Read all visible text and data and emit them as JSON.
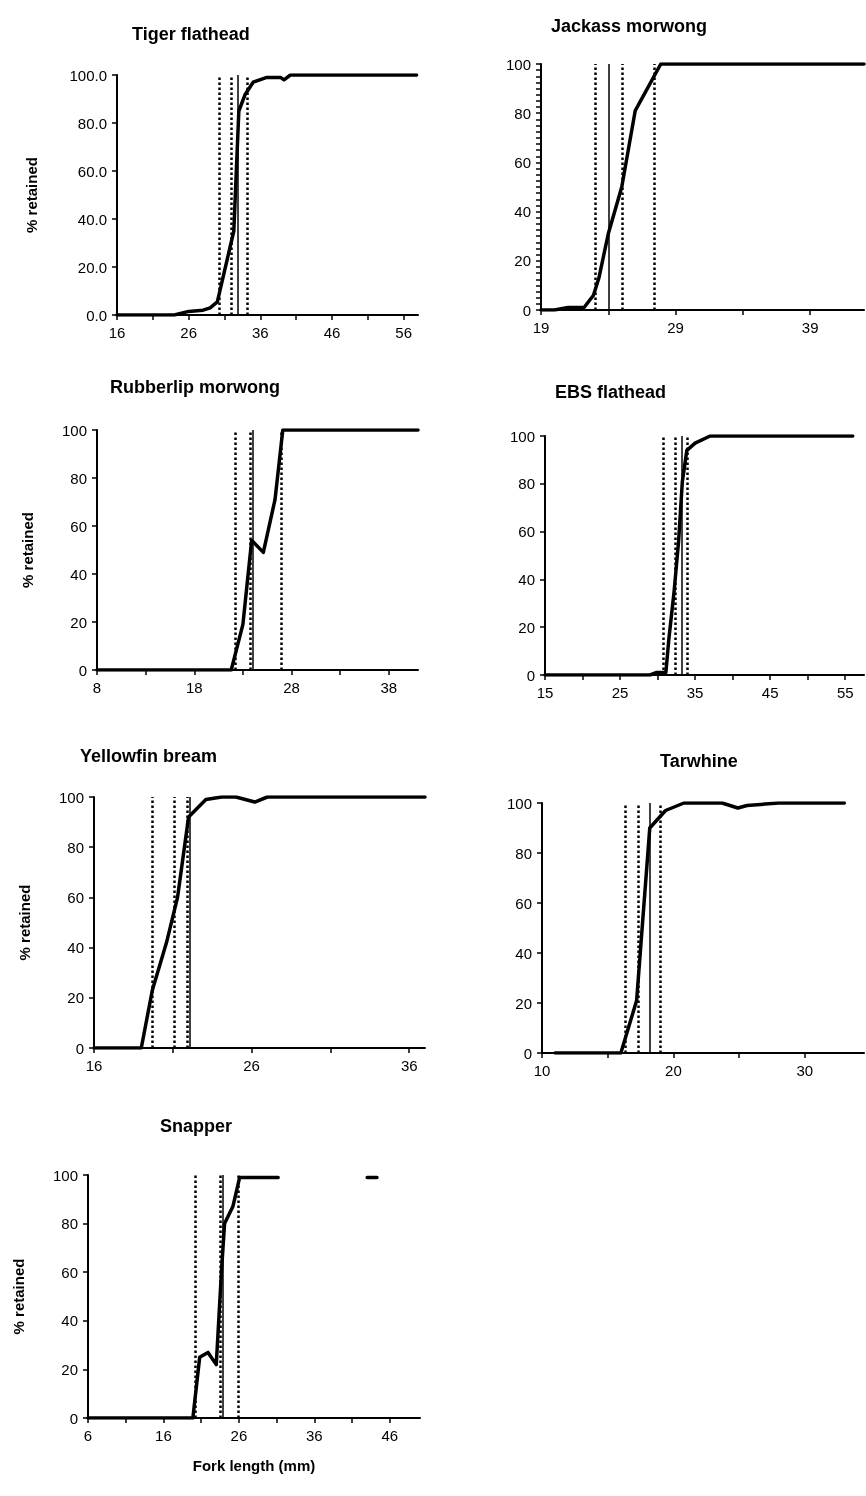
{
  "chart_data": [
    {
      "type": "line",
      "title": "Tiger flathead",
      "ylabel": "% retained",
      "marker": "none",
      "grid": false,
      "xlim": [
        16,
        58
      ],
      "xticks": [
        16,
        {
          "value": 21,
          "label": null
        },
        26,
        {
          "value": 31,
          "label": null
        },
        36,
        {
          "value": 41,
          "label": null
        },
        46,
        {
          "value": 51,
          "label": null
        },
        56
      ],
      "ylim": [
        0,
        100
      ],
      "yticks": [
        {
          "value": 0,
          "label": "0.0"
        },
        {
          "value": 20,
          "label": "20.0"
        },
        {
          "value": 40,
          "label": "40.0"
        },
        {
          "value": 60,
          "label": "60.0"
        },
        {
          "value": 80,
          "label": "80.0"
        },
        {
          "value": 100,
          "label": "100.0"
        }
      ],
      "series": [
        {
          "color": "#000000",
          "x": [
            16,
            18,
            20,
            22,
            24,
            26,
            28,
            29,
            30,
            30.9,
            32.3,
            33,
            33.9,
            35,
            36.9,
            38.8,
            39.3,
            40.2,
            45,
            50,
            55,
            57.8
          ],
          "values": [
            0,
            0,
            0,
            0,
            0,
            1.5,
            2,
            3,
            5.5,
            17,
            35,
            85,
            92,
            97,
            99,
            99,
            98,
            100,
            100,
            100,
            100,
            100
          ]
        }
      ],
      "ref_lines": [
        {
          "axis": "x",
          "value": 30.2,
          "line_style": "dotted",
          "color": "#000000"
        },
        {
          "axis": "x",
          "value": 32,
          "line_style": "dotted",
          "color": "#000000"
        },
        {
          "axis": "x",
          "value": 32.9,
          "line_style": "solid",
          "color": "#000000"
        },
        {
          "axis": "x",
          "value": 34.2,
          "line_style": "dotted",
          "color": "#000000"
        }
      ]
    },
    {
      "type": "line",
      "title": "Jackass morwong",
      "marker": "none",
      "grid": false,
      "xlim": [
        19,
        43
      ],
      "xticks": [
        19,
        {
          "value": 24,
          "label": null
        },
        29,
        {
          "value": 34,
          "label": null
        },
        39
      ],
      "ylim": [
        0,
        100
      ],
      "yticks": [
        0,
        {
          "value": 2.5,
          "label": null
        },
        {
          "value": 5,
          "label": null
        },
        {
          "value": 7.5,
          "label": null
        },
        {
          "value": 10,
          "label": null
        },
        {
          "value": 12.5,
          "label": null
        },
        {
          "value": 15,
          "label": null
        },
        {
          "value": 17.5,
          "label": null
        },
        20,
        {
          "value": 22.5,
          "label": null
        },
        {
          "value": 25,
          "label": null
        },
        {
          "value": 27.5,
          "label": null
        },
        {
          "value": 30,
          "label": null
        },
        {
          "value": 32.5,
          "label": null
        },
        {
          "value": 35,
          "label": null
        },
        {
          "value": 37.5,
          "label": null
        },
        40,
        {
          "value": 42.5,
          "label": null
        },
        {
          "value": 45,
          "label": null
        },
        {
          "value": 47.5,
          "label": null
        },
        {
          "value": 50,
          "label": null
        },
        {
          "value": 52.5,
          "label": null
        },
        {
          "value": 55,
          "label": null
        },
        {
          "value": 57.5,
          "label": null
        },
        60,
        {
          "value": 62.5,
          "label": null
        },
        {
          "value": 65,
          "label": null
        },
        {
          "value": 67.5,
          "label": null
        },
        {
          "value": 70,
          "label": null
        },
        {
          "value": 72.5,
          "label": null
        },
        {
          "value": 75,
          "label": null
        },
        {
          "value": 77.5,
          "label": null
        },
        80,
        {
          "value": 82.5,
          "label": null
        },
        {
          "value": 85,
          "label": null
        },
        {
          "value": 87.5,
          "label": null
        },
        {
          "value": 90,
          "label": null
        },
        {
          "value": 92.5,
          "label": null
        },
        {
          "value": 95,
          "label": null
        },
        {
          "value": 97.5,
          "label": null
        },
        100
      ],
      "series": [
        {
          "color": "#000000",
          "x": [
            19,
            20,
            21,
            22,
            22.2,
            22.9,
            23.3,
            24,
            25,
            26,
            26.4,
            27.9,
            30,
            35,
            40,
            43
          ],
          "values": [
            0,
            0,
            1,
            1,
            1,
            6,
            13,
            31,
            50,
            81,
            85,
            100,
            100,
            100,
            100,
            100
          ]
        }
      ],
      "ref_lines": [
        {
          "axis": "x",
          "value": 23,
          "line_style": "dotted",
          "color": "#000000"
        },
        {
          "axis": "x",
          "value": 24,
          "line_style": "solid",
          "color": "#000000"
        },
        {
          "axis": "x",
          "value": 25,
          "line_style": "dotted",
          "color": "#000000"
        },
        {
          "axis": "x",
          "value": 27.4,
          "line_style": "dotted",
          "color": "#000000"
        }
      ]
    },
    {
      "type": "line",
      "title": "Rubberlip morwong",
      "ylabel": "% retained",
      "marker": "none",
      "grid": false,
      "xlim": [
        8,
        41
      ],
      "xticks": [
        8,
        {
          "value": 13,
          "label": null
        },
        18,
        {
          "value": 23,
          "label": null
        },
        28,
        {
          "value": 33,
          "label": null
        },
        38
      ],
      "ylim": [
        0,
        100
      ],
      "yticks": [
        0,
        20,
        40,
        60,
        80,
        100
      ],
      "series": [
        {
          "color": "#000000",
          "x": [
            8,
            12,
            16,
            20,
            21.8,
            23,
            23.9,
            25.1,
            26.3,
            27.1,
            30,
            35,
            41
          ],
          "values": [
            0,
            0,
            0,
            0,
            0,
            19,
            54,
            49,
            71,
            100,
            100,
            100,
            100
          ]
        }
      ],
      "ref_lines": [
        {
          "axis": "x",
          "value": 22.2,
          "line_style": "dotted",
          "color": "#000000"
        },
        {
          "axis": "x",
          "value": 23.8,
          "line_style": "dotted",
          "color": "#000000"
        },
        {
          "axis": "x",
          "value": 24,
          "line_style": "solid",
          "color": "#000000"
        },
        {
          "axis": "x",
          "value": 26.9,
          "line_style": "dotted",
          "color": "#000000"
        }
      ]
    },
    {
      "type": "line",
      "title": "EBS flathead",
      "marker": "none",
      "grid": false,
      "xlim": [
        15,
        57.5
      ],
      "xticks": [
        15,
        {
          "value": 20,
          "label": null
        },
        25,
        {
          "value": 30,
          "label": null
        },
        35,
        {
          "value": 40,
          "label": null
        },
        45,
        {
          "value": 50,
          "label": null
        },
        55
      ],
      "ylim": [
        0,
        100
      ],
      "yticks": [
        0,
        20,
        40,
        60,
        80,
        100
      ],
      "series": [
        {
          "color": "#000000",
          "x": [
            15,
            20,
            25,
            29,
            29.8,
            31.1,
            31.5,
            32.2,
            32.8,
            33.3,
            33.9,
            35,
            37,
            45,
            56
          ],
          "values": [
            0,
            0,
            0,
            0,
            1,
            1,
            15,
            35,
            56,
            81,
            94,
            97,
            100,
            100,
            100
          ]
        }
      ],
      "ref_lines": [
        {
          "axis": "x",
          "value": 30.8,
          "line_style": "dotted",
          "color": "#000000"
        },
        {
          "axis": "x",
          "value": 32.4,
          "line_style": "dotted",
          "color": "#000000"
        },
        {
          "axis": "x",
          "value": 33.2,
          "line_style": "solid",
          "color": "#000000"
        },
        {
          "axis": "x",
          "value": 33.9,
          "line_style": "dotted",
          "color": "#000000"
        }
      ]
    },
    {
      "type": "line",
      "title": "Yellowfin bream",
      "ylabel": "% retained",
      "marker": "none",
      "grid": false,
      "xlim": [
        16,
        37
      ],
      "xticks": [
        16,
        {
          "value": 21,
          "label": null
        },
        26,
        {
          "value": 31,
          "label": null
        },
        36
      ],
      "ylim": [
        0,
        100
      ],
      "yticks": [
        0,
        20,
        40,
        60,
        80,
        100
      ],
      "series": [
        {
          "color": "#000000",
          "x": [
            16,
            19,
            19.7,
            20.6,
            21.3,
            22,
            23.1,
            24.1,
            25,
            26.2,
            27,
            30,
            35,
            37
          ],
          "values": [
            0,
            0,
            23,
            42,
            60,
            92,
            99,
            100,
            100,
            98,
            100,
            100,
            100,
            100
          ]
        }
      ],
      "ref_lines": [
        {
          "axis": "x",
          "value": 19.7,
          "line_style": "dotted",
          "color": "#000000"
        },
        {
          "axis": "x",
          "value": 21.1,
          "line_style": "dotted",
          "color": "#000000"
        },
        {
          "axis": "x",
          "value": 21.9,
          "line_style": "dotted",
          "color": "#000000"
        },
        {
          "axis": "x",
          "value": 22.1,
          "line_style": "solid",
          "color": "#000000"
        }
      ]
    },
    {
      "type": "line",
      "title": "Tarwhine",
      "marker": "none",
      "grid": false,
      "xlim": [
        10,
        34.5
      ],
      "xticks": [
        10,
        {
          "value": 15,
          "label": null
        },
        20,
        {
          "value": 25,
          "label": null
        },
        30
      ],
      "ylim": [
        0,
        100
      ],
      "yticks": [
        0,
        20,
        40,
        60,
        80,
        100
      ],
      "series": [
        {
          "color": "#000000",
          "x": [
            11,
            14,
            16,
            17.2,
            18.2,
            19.4,
            20.8,
            23.7,
            24.9,
            25.6,
            28,
            33
          ],
          "values": [
            0,
            0,
            0,
            21,
            90,
            97,
            100,
            100,
            98,
            99,
            100,
            100
          ]
        }
      ],
      "ref_lines": [
        {
          "axis": "x",
          "value": 16.3,
          "line_style": "dotted",
          "color": "#000000"
        },
        {
          "axis": "x",
          "value": 17.3,
          "line_style": "dotted",
          "color": "#000000"
        },
        {
          "axis": "x",
          "value": 18.2,
          "line_style": "solid",
          "color": "#000000"
        },
        {
          "axis": "x",
          "value": 19,
          "line_style": "dotted",
          "color": "#000000"
        }
      ]
    },
    {
      "type": "line",
      "title": "Snapper",
      "xlabel": "Fork length (mm)",
      "ylabel": "% retained",
      "marker": "none",
      "grid": false,
      "xlim": [
        6,
        50
      ],
      "xticks": [
        6,
        {
          "value": 11,
          "label": null
        },
        16,
        {
          "value": 21,
          "label": null
        },
        26,
        {
          "value": 31,
          "label": null
        },
        36,
        {
          "value": 41,
          "label": null
        },
        46
      ],
      "ylim": [
        0,
        100
      ],
      "yticks": [
        0,
        20,
        40,
        60,
        80,
        100
      ],
      "series": [
        {
          "color": "#000000",
          "x": [
            6,
            10,
            15,
            19.9,
            20.8,
            21.9,
            23,
            23.7,
            24.1,
            25.2,
            26.1,
            31.2,
            37,
            43,
            44.3
          ],
          "values": [
            0,
            0,
            0,
            0,
            25,
            27,
            22,
            61,
            80,
            87,
            99,
            99,
            null,
            99,
            99
          ]
        }
      ],
      "ref_lines": [
        {
          "axis": "x",
          "value": 20.2,
          "line_style": "dotted",
          "color": "#000000"
        },
        {
          "axis": "x",
          "value": 23.5,
          "line_style": "dotted",
          "color": "#000000"
        },
        {
          "axis": "x",
          "value": 23.8,
          "line_style": "solid",
          "color": "#000000"
        },
        {
          "axis": "x",
          "value": 25.9,
          "line_style": "dotted",
          "color": "#000000"
        }
      ]
    }
  ]
}
